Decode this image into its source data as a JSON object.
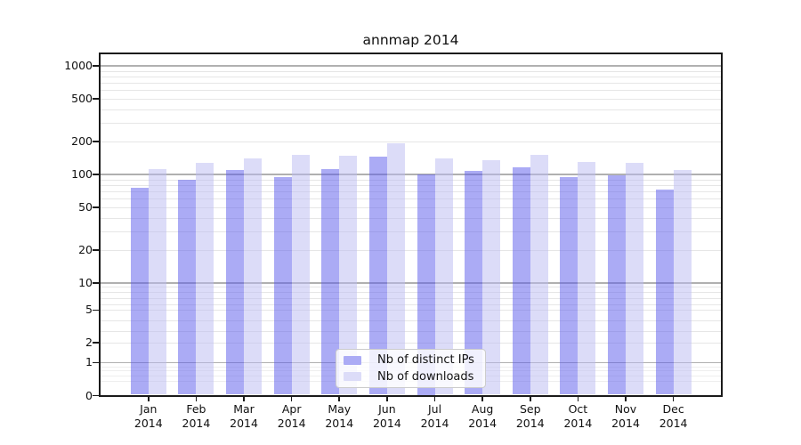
{
  "figure": {
    "background": "#ffffff"
  },
  "chart_data": {
    "type": "bar",
    "title": "annmap 2014",
    "categories": [
      "Jan",
      "Feb",
      "Mar",
      "Apr",
      "May",
      "Jun",
      "Jul",
      "Aug",
      "Sep",
      "Oct",
      "Nov",
      "Dec"
    ],
    "year": "2014",
    "series": [
      {
        "name": "Nb of distinct IPs",
        "legend_color": "#ababf5",
        "fill": "rgba(87,87,235,0.5)",
        "values": [
          76,
          90,
          110,
          95,
          111,
          147,
          100,
          107,
          116,
          94,
          99,
          72
        ]
      },
      {
        "name": "Nb of downloads",
        "legend_color": "#dcdcf8",
        "fill": "rgba(185,185,241,0.5)",
        "values": [
          112,
          127,
          140,
          152,
          150,
          195,
          140,
          135,
          152,
          130,
          129,
          110
        ]
      }
    ],
    "yscale": "log",
    "yticks": [
      0,
      1,
      2,
      5,
      10,
      20,
      50,
      100,
      200,
      500,
      1000
    ],
    "ylim": [
      0,
      1300
    ],
    "grid": true,
    "legend_position": "bottom-center"
  },
  "colors": {
    "major_grid": "#b0b0b0",
    "minor_grid": "#e6e6e6",
    "spine": "#1a1a1a",
    "text": "#111111"
  }
}
